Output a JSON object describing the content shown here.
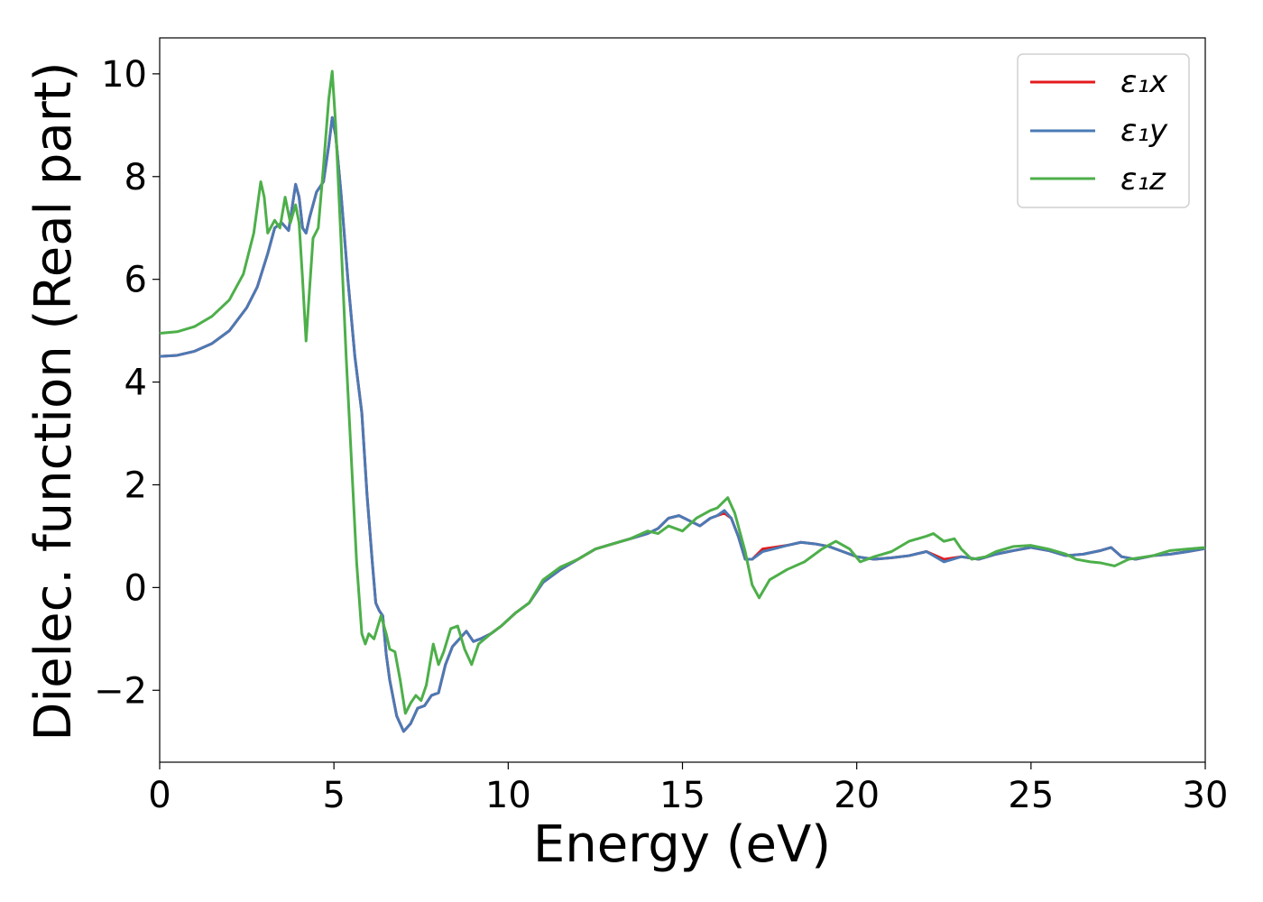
{
  "chart_data": {
    "type": "line",
    "title": "",
    "xlabel": "Energy (eV)",
    "ylabel": "Dielec. function (Real part)",
    "xlim": [
      0,
      30
    ],
    "ylim": [
      -3.4,
      10.7
    ],
    "xticks": [
      0,
      5,
      10,
      15,
      20,
      25,
      30
    ],
    "xtick_labels": [
      "0",
      "5",
      "10",
      "15",
      "20",
      "25",
      "30"
    ],
    "yticks": [
      -2,
      0,
      2,
      4,
      6,
      8,
      10
    ],
    "ytick_labels": [
      "−2",
      "0",
      "2",
      "4",
      "6",
      "8",
      "10"
    ],
    "grid": false,
    "legend_position": "top-right",
    "series": [
      {
        "name": "ε₁x",
        "color": "#e41a1c",
        "points": [
          [
            0,
            4.5
          ],
          [
            0.5,
            4.52
          ],
          [
            1.0,
            4.6
          ],
          [
            1.5,
            4.75
          ],
          [
            2.0,
            5.0
          ],
          [
            2.5,
            5.45
          ],
          [
            2.8,
            5.85
          ],
          [
            3.1,
            6.5
          ],
          [
            3.3,
            7.0
          ],
          [
            3.5,
            7.1
          ],
          [
            3.7,
            6.95
          ],
          [
            3.8,
            7.4
          ],
          [
            3.9,
            7.85
          ],
          [
            4.0,
            7.6
          ],
          [
            4.1,
            7.0
          ],
          [
            4.2,
            6.9
          ],
          [
            4.3,
            7.2
          ],
          [
            4.5,
            7.7
          ],
          [
            4.7,
            7.9
          ],
          [
            4.85,
            8.6
          ],
          [
            4.95,
            9.15
          ],
          [
            5.05,
            8.8
          ],
          [
            5.2,
            7.7
          ],
          [
            5.4,
            6.0
          ],
          [
            5.6,
            4.5
          ],
          [
            5.8,
            3.4
          ],
          [
            5.95,
            1.8
          ],
          [
            6.1,
            0.5
          ],
          [
            6.2,
            -0.3
          ],
          [
            6.3,
            -0.45
          ],
          [
            6.4,
            -0.55
          ],
          [
            6.5,
            -1.3
          ],
          [
            6.6,
            -1.8
          ],
          [
            6.8,
            -2.5
          ],
          [
            7.0,
            -2.8
          ],
          [
            7.2,
            -2.65
          ],
          [
            7.4,
            -2.35
          ],
          [
            7.6,
            -2.3
          ],
          [
            7.8,
            -2.1
          ],
          [
            8.0,
            -2.05
          ],
          [
            8.2,
            -1.5
          ],
          [
            8.4,
            -1.15
          ],
          [
            8.6,
            -1.0
          ],
          [
            8.8,
            -0.85
          ],
          [
            9.0,
            -1.05
          ],
          [
            9.2,
            -1.0
          ],
          [
            9.5,
            -0.9
          ],
          [
            9.8,
            -0.75
          ],
          [
            10.2,
            -0.5
          ],
          [
            10.6,
            -0.3
          ],
          [
            11.0,
            0.1
          ],
          [
            11.5,
            0.35
          ],
          [
            12.0,
            0.55
          ],
          [
            12.5,
            0.75
          ],
          [
            13.0,
            0.85
          ],
          [
            13.5,
            0.95
          ],
          [
            14.0,
            1.05
          ],
          [
            14.3,
            1.15
          ],
          [
            14.6,
            1.35
          ],
          [
            14.9,
            1.4
          ],
          [
            15.2,
            1.3
          ],
          [
            15.5,
            1.2
          ],
          [
            15.8,
            1.35
          ],
          [
            16.0,
            1.4
          ],
          [
            16.2,
            1.45
          ],
          [
            16.4,
            1.35
          ],
          [
            16.6,
            1.0
          ],
          [
            16.8,
            0.55
          ],
          [
            17.0,
            0.55
          ],
          [
            17.3,
            0.75
          ],
          [
            17.6,
            0.78
          ],
          [
            18.0,
            0.82
          ],
          [
            18.4,
            0.88
          ],
          [
            18.8,
            0.85
          ],
          [
            19.2,
            0.8
          ],
          [
            19.6,
            0.7
          ],
          [
            20.0,
            0.6
          ],
          [
            20.5,
            0.55
          ],
          [
            21.0,
            0.58
          ],
          [
            21.5,
            0.62
          ],
          [
            22.0,
            0.7
          ],
          [
            22.5,
            0.55
          ],
          [
            23.0,
            0.6
          ],
          [
            23.5,
            0.55
          ],
          [
            24.0,
            0.65
          ],
          [
            24.5,
            0.72
          ],
          [
            25.0,
            0.78
          ],
          [
            25.5,
            0.72
          ],
          [
            26.0,
            0.62
          ],
          [
            26.5,
            0.65
          ],
          [
            27.0,
            0.72
          ],
          [
            27.3,
            0.78
          ],
          [
            27.6,
            0.6
          ],
          [
            28.0,
            0.55
          ],
          [
            28.5,
            0.62
          ],
          [
            29.0,
            0.65
          ],
          [
            29.5,
            0.7
          ],
          [
            30.0,
            0.76
          ]
        ]
      },
      {
        "name": "ε₁y",
        "color": "#4a7ab5",
        "points": [
          [
            0,
            4.5
          ],
          [
            0.5,
            4.52
          ],
          [
            1.0,
            4.6
          ],
          [
            1.5,
            4.75
          ],
          [
            2.0,
            5.0
          ],
          [
            2.5,
            5.45
          ],
          [
            2.8,
            5.85
          ],
          [
            3.1,
            6.5
          ],
          [
            3.3,
            7.0
          ],
          [
            3.5,
            7.1
          ],
          [
            3.7,
            6.95
          ],
          [
            3.8,
            7.4
          ],
          [
            3.9,
            7.85
          ],
          [
            4.0,
            7.6
          ],
          [
            4.1,
            7.0
          ],
          [
            4.2,
            6.9
          ],
          [
            4.3,
            7.2
          ],
          [
            4.5,
            7.7
          ],
          [
            4.7,
            7.9
          ],
          [
            4.85,
            8.6
          ],
          [
            4.95,
            9.15
          ],
          [
            5.05,
            8.8
          ],
          [
            5.2,
            7.7
          ],
          [
            5.4,
            6.0
          ],
          [
            5.6,
            4.5
          ],
          [
            5.8,
            3.4
          ],
          [
            5.95,
            1.8
          ],
          [
            6.1,
            0.5
          ],
          [
            6.2,
            -0.3
          ],
          [
            6.3,
            -0.45
          ],
          [
            6.4,
            -0.55
          ],
          [
            6.5,
            -1.3
          ],
          [
            6.6,
            -1.8
          ],
          [
            6.8,
            -2.5
          ],
          [
            7.0,
            -2.8
          ],
          [
            7.2,
            -2.65
          ],
          [
            7.4,
            -2.35
          ],
          [
            7.6,
            -2.3
          ],
          [
            7.8,
            -2.1
          ],
          [
            8.0,
            -2.05
          ],
          [
            8.2,
            -1.5
          ],
          [
            8.4,
            -1.15
          ],
          [
            8.6,
            -1.0
          ],
          [
            8.8,
            -0.85
          ],
          [
            9.0,
            -1.05
          ],
          [
            9.2,
            -1.0
          ],
          [
            9.5,
            -0.9
          ],
          [
            9.8,
            -0.75
          ],
          [
            10.2,
            -0.5
          ],
          [
            10.6,
            -0.3
          ],
          [
            11.0,
            0.1
          ],
          [
            11.5,
            0.35
          ],
          [
            12.0,
            0.55
          ],
          [
            12.5,
            0.75
          ],
          [
            13.0,
            0.85
          ],
          [
            13.5,
            0.95
          ],
          [
            14.0,
            1.05
          ],
          [
            14.3,
            1.15
          ],
          [
            14.6,
            1.35
          ],
          [
            14.9,
            1.4
          ],
          [
            15.2,
            1.3
          ],
          [
            15.5,
            1.2
          ],
          [
            15.8,
            1.35
          ],
          [
            16.0,
            1.4
          ],
          [
            16.2,
            1.5
          ],
          [
            16.4,
            1.35
          ],
          [
            16.6,
            1.0
          ],
          [
            16.8,
            0.55
          ],
          [
            17.0,
            0.55
          ],
          [
            17.3,
            0.7
          ],
          [
            17.6,
            0.75
          ],
          [
            18.0,
            0.82
          ],
          [
            18.4,
            0.88
          ],
          [
            18.8,
            0.85
          ],
          [
            19.2,
            0.8
          ],
          [
            19.6,
            0.7
          ],
          [
            20.0,
            0.6
          ],
          [
            20.5,
            0.55
          ],
          [
            21.0,
            0.58
          ],
          [
            21.5,
            0.62
          ],
          [
            22.0,
            0.7
          ],
          [
            22.5,
            0.5
          ],
          [
            23.0,
            0.6
          ],
          [
            23.5,
            0.55
          ],
          [
            24.0,
            0.65
          ],
          [
            24.5,
            0.72
          ],
          [
            25.0,
            0.78
          ],
          [
            25.5,
            0.72
          ],
          [
            26.0,
            0.62
          ],
          [
            26.5,
            0.65
          ],
          [
            27.0,
            0.72
          ],
          [
            27.3,
            0.78
          ],
          [
            27.6,
            0.6
          ],
          [
            28.0,
            0.55
          ],
          [
            28.5,
            0.62
          ],
          [
            29.0,
            0.65
          ],
          [
            29.5,
            0.7
          ],
          [
            30.0,
            0.76
          ]
        ]
      },
      {
        "name": "ε₁z",
        "color": "#4daf4a",
        "points": [
          [
            0,
            4.95
          ],
          [
            0.5,
            4.98
          ],
          [
            1.0,
            5.08
          ],
          [
            1.5,
            5.28
          ],
          [
            2.0,
            5.6
          ],
          [
            2.4,
            6.1
          ],
          [
            2.7,
            6.9
          ],
          [
            2.9,
            7.9
          ],
          [
            3.0,
            7.6
          ],
          [
            3.1,
            6.9
          ],
          [
            3.3,
            7.15
          ],
          [
            3.45,
            7.0
          ],
          [
            3.6,
            7.6
          ],
          [
            3.75,
            7.1
          ],
          [
            3.9,
            7.45
          ],
          [
            4.0,
            7.1
          ],
          [
            4.1,
            6.0
          ],
          [
            4.2,
            4.8
          ],
          [
            4.3,
            5.8
          ],
          [
            4.4,
            6.8
          ],
          [
            4.55,
            7.0
          ],
          [
            4.7,
            8.2
          ],
          [
            4.85,
            9.5
          ],
          [
            4.95,
            10.05
          ],
          [
            5.05,
            9.0
          ],
          [
            5.2,
            6.8
          ],
          [
            5.35,
            4.5
          ],
          [
            5.5,
            2.5
          ],
          [
            5.65,
            0.5
          ],
          [
            5.8,
            -0.9
          ],
          [
            5.9,
            -1.1
          ],
          [
            6.0,
            -0.9
          ],
          [
            6.15,
            -1.0
          ],
          [
            6.35,
            -0.55
          ],
          [
            6.5,
            -0.9
          ],
          [
            6.6,
            -1.2
          ],
          [
            6.75,
            -1.25
          ],
          [
            6.9,
            -1.8
          ],
          [
            7.05,
            -2.45
          ],
          [
            7.2,
            -2.25
          ],
          [
            7.35,
            -2.1
          ],
          [
            7.5,
            -2.2
          ],
          [
            7.65,
            -1.9
          ],
          [
            7.85,
            -1.1
          ],
          [
            8.0,
            -1.5
          ],
          [
            8.15,
            -1.25
          ],
          [
            8.35,
            -0.8
          ],
          [
            8.55,
            -0.75
          ],
          [
            8.75,
            -1.2
          ],
          [
            8.95,
            -1.5
          ],
          [
            9.15,
            -1.1
          ],
          [
            9.5,
            -0.9
          ],
          [
            9.8,
            -0.75
          ],
          [
            10.2,
            -0.5
          ],
          [
            10.6,
            -0.3
          ],
          [
            11.0,
            0.15
          ],
          [
            11.5,
            0.4
          ],
          [
            12.0,
            0.55
          ],
          [
            12.5,
            0.75
          ],
          [
            13.0,
            0.85
          ],
          [
            13.5,
            0.95
          ],
          [
            14.0,
            1.1
          ],
          [
            14.3,
            1.05
          ],
          [
            14.6,
            1.2
          ],
          [
            15.0,
            1.1
          ],
          [
            15.4,
            1.35
          ],
          [
            15.8,
            1.5
          ],
          [
            16.0,
            1.55
          ],
          [
            16.3,
            1.75
          ],
          [
            16.5,
            1.45
          ],
          [
            16.8,
            0.7
          ],
          [
            17.0,
            0.05
          ],
          [
            17.2,
            -0.2
          ],
          [
            17.5,
            0.15
          ],
          [
            18.0,
            0.35
          ],
          [
            18.5,
            0.5
          ],
          [
            19.0,
            0.75
          ],
          [
            19.4,
            0.9
          ],
          [
            19.8,
            0.75
          ],
          [
            20.1,
            0.5
          ],
          [
            20.5,
            0.6
          ],
          [
            21.0,
            0.7
          ],
          [
            21.5,
            0.9
          ],
          [
            22.0,
            1.0
          ],
          [
            22.2,
            1.05
          ],
          [
            22.5,
            0.9
          ],
          [
            22.8,
            0.95
          ],
          [
            23.0,
            0.75
          ],
          [
            23.3,
            0.55
          ],
          [
            23.7,
            0.6
          ],
          [
            24.0,
            0.7
          ],
          [
            24.5,
            0.8
          ],
          [
            25.0,
            0.82
          ],
          [
            25.5,
            0.75
          ],
          [
            26.0,
            0.65
          ],
          [
            26.3,
            0.55
          ],
          [
            26.7,
            0.5
          ],
          [
            27.0,
            0.48
          ],
          [
            27.4,
            0.42
          ],
          [
            27.8,
            0.55
          ],
          [
            28.5,
            0.62
          ],
          [
            29.0,
            0.72
          ],
          [
            29.5,
            0.75
          ],
          [
            30.0,
            0.78
          ]
        ]
      }
    ]
  }
}
